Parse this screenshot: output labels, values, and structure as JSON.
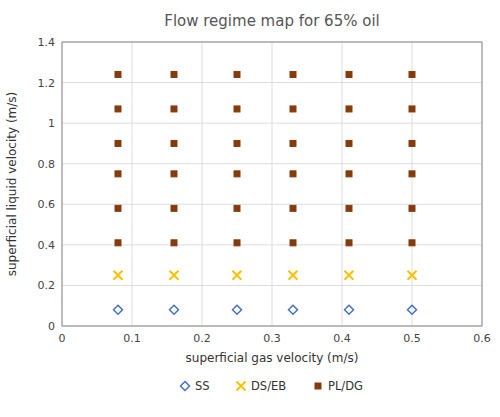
{
  "chart_data": {
    "type": "scatter",
    "title": "Flow regime map for 65% oil",
    "x_label": "superficial gas velocity (m/s)",
    "y_label": "superficial liquid velocity (m/s)",
    "xlim": [
      0,
      0.6
    ],
    "ylim": [
      0,
      1.4
    ],
    "xticks": [
      0,
      0.1,
      0.2,
      0.3,
      0.4,
      0.5,
      0.6
    ],
    "yticks": [
      0,
      0.2,
      0.4,
      0.6,
      0.8,
      1,
      1.2,
      1.4
    ],
    "grid": true,
    "legend": "bottom",
    "series": [
      {
        "name": "SS",
        "color": "#4472C4",
        "marker": "diamond",
        "x": [
          0.08,
          0.16,
          0.25,
          0.33,
          0.41,
          0.5
        ],
        "values": [
          0.08,
          0.08,
          0.08,
          0.08,
          0.08,
          0.08
        ]
      },
      {
        "name": "DS/EB",
        "color": "#FFC000",
        "marker": "x",
        "x": [
          0.08,
          0.16,
          0.25,
          0.33,
          0.41,
          0.5
        ],
        "values": [
          0.25,
          0.25,
          0.25,
          0.25,
          0.25,
          0.25
        ]
      },
      {
        "name": "PL/DG",
        "color": "#843C0C",
        "marker": "square",
        "x": [
          0.08,
          0.16,
          0.25,
          0.33,
          0.41,
          0.5,
          0.08,
          0.16,
          0.25,
          0.33,
          0.41,
          0.5,
          0.08,
          0.16,
          0.25,
          0.33,
          0.41,
          0.5,
          0.08,
          0.16,
          0.25,
          0.33,
          0.41,
          0.5,
          0.08,
          0.16,
          0.25,
          0.33,
          0.41,
          0.5,
          0.08,
          0.16,
          0.25,
          0.33,
          0.41,
          0.5
        ],
        "values": [
          0.41,
          0.41,
          0.41,
          0.41,
          0.41,
          0.41,
          0.58,
          0.58,
          0.58,
          0.58,
          0.58,
          0.58,
          0.75,
          0.75,
          0.75,
          0.75,
          0.75,
          0.75,
          0.9,
          0.9,
          0.9,
          0.9,
          0.9,
          0.9,
          1.07,
          1.07,
          1.07,
          1.07,
          1.07,
          1.07,
          1.24,
          1.24,
          1.24,
          1.24,
          1.24,
          1.24
        ]
      }
    ]
  }
}
